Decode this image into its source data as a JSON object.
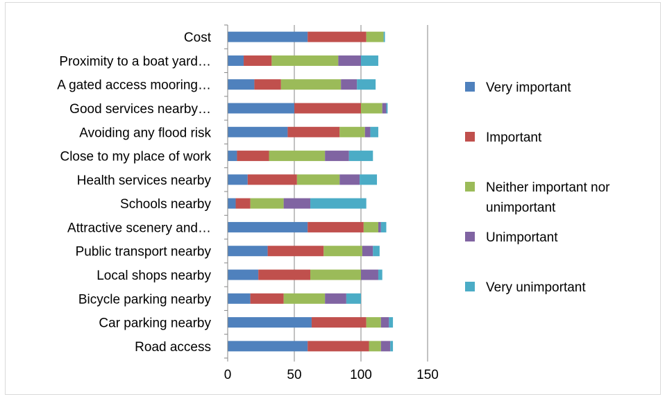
{
  "chart_data": {
    "type": "bar",
    "orientation": "horizontal",
    "stacked": true,
    "title": "",
    "xlabel": "",
    "ylabel": "",
    "xlim": [
      0,
      150
    ],
    "xticks": [
      "0",
      "50",
      "100",
      "150"
    ],
    "grid": "vertical major gridlines",
    "legend_position": "right",
    "categories": [
      "Cost",
      "Proximity to a boat yard…",
      "A gated access mooring…",
      "Good services nearby…",
      "Avoiding any flood risk",
      "Close to my place of work",
      "Health services nearby",
      "Schools nearby",
      "Attractive scenery and…",
      "Public transport nearby",
      "Local shops nearby",
      "Bicycle parking nearby",
      "Car parking nearby",
      "Road access"
    ],
    "series": [
      {
        "name": "Very important",
        "legend_lines": [
          "Very important"
        ],
        "color": "#4f81bd",
        "values": [
          60,
          12,
          20,
          50,
          45,
          7,
          15,
          6,
          60,
          30,
          23,
          17,
          63,
          60
        ]
      },
      {
        "name": "Important",
        "legend_lines": [
          "Important"
        ],
        "color": "#c0504d",
        "values": [
          44,
          21,
          20,
          50,
          39,
          24,
          37,
          11,
          42,
          42,
          39,
          25,
          41,
          46
        ]
      },
      {
        "name": "Neither important nor unimportant",
        "legend_lines": [
          "Neither important nor",
          "unimportant"
        ],
        "color": "#9bbb59",
        "values": [
          13,
          50,
          45,
          16,
          19,
          42,
          32,
          25,
          11,
          29,
          38,
          31,
          11,
          9
        ]
      },
      {
        "name": "Unimportant",
        "legend_lines": [
          "Unimportant"
        ],
        "color": "#8064a2",
        "values": [
          0,
          17,
          12,
          3,
          4,
          18,
          15,
          20,
          2,
          8,
          13,
          16,
          6,
          7
        ]
      },
      {
        "name": "Very unimportant",
        "legend_lines": [
          "Very unimportant"
        ],
        "color": "#4bacc6",
        "values": [
          1,
          13,
          14,
          1,
          6,
          18,
          13,
          42,
          4,
          5,
          3,
          11,
          3,
          2
        ]
      }
    ]
  }
}
